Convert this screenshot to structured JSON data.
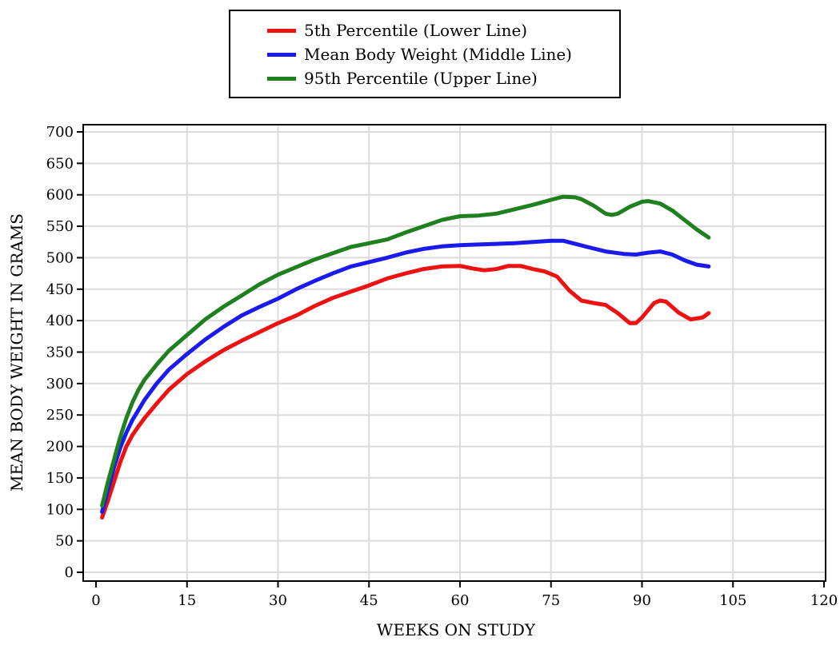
{
  "chart_data": {
    "type": "line",
    "title": "",
    "xlabel": "WEEKS ON STUDY",
    "ylabel": "MEAN BODY WEIGHT IN GRAMS",
    "xlim": [
      0,
      120
    ],
    "ylim": [
      0,
      700
    ],
    "x_ticks": [
      0,
      15,
      30,
      45,
      60,
      75,
      90,
      105,
      120
    ],
    "y_ticks": [
      0,
      50,
      100,
      150,
      200,
      250,
      300,
      350,
      400,
      450,
      500,
      550,
      600,
      650,
      700
    ],
    "grid": true,
    "legend_position": "top-center",
    "series": [
      {
        "name": "5th Percentile (Lower Line)",
        "color": "#ee1111",
        "x": [
          1,
          2,
          3,
          4,
          5,
          6,
          7,
          8,
          10,
          12,
          15,
          18,
          21,
          24,
          27,
          30,
          33,
          36,
          39,
          42,
          45,
          48,
          51,
          54,
          57,
          60,
          62,
          64,
          66,
          68,
          70,
          72,
          74,
          76,
          78,
          80,
          82,
          84,
          86,
          88,
          89,
          90,
          92,
          93,
          94,
          96,
          98,
          100,
          101
        ],
        "values": [
          87,
          115,
          145,
          175,
          200,
          218,
          232,
          245,
          268,
          290,
          315,
          335,
          353,
          368,
          382,
          396,
          408,
          423,
          436,
          446,
          456,
          467,
          475,
          482,
          486,
          487,
          483,
          480,
          482,
          487,
          487,
          482,
          478,
          470,
          448,
          432,
          428,
          425,
          412,
          396,
          396,
          405,
          428,
          432,
          430,
          413,
          402,
          405,
          412
        ]
      },
      {
        "name": "Mean Body Weight (Middle Line)",
        "color": "#1a1aee",
        "x": [
          1,
          2,
          3,
          4,
          5,
          6,
          7,
          8,
          10,
          12,
          15,
          18,
          21,
          24,
          27,
          30,
          33,
          36,
          39,
          42,
          45,
          48,
          51,
          54,
          57,
          60,
          63,
          66,
          69,
          72,
          75,
          77,
          79,
          81,
          84,
          87,
          89,
          91,
          93,
          95,
          97,
          99,
          101
        ],
        "values": [
          96,
          132,
          168,
          198,
          222,
          242,
          258,
          274,
          300,
          322,
          347,
          370,
          390,
          408,
          422,
          435,
          450,
          463,
          475,
          486,
          493,
          500,
          508,
          514,
          518,
          520,
          521,
          522,
          523,
          525,
          527,
          527,
          522,
          517,
          510,
          506,
          505,
          508,
          510,
          505,
          496,
          489,
          486
        ]
      },
      {
        "name": "95th Percentile (Upper Line)",
        "color": "#1e801e",
        "x": [
          1,
          2,
          3,
          4,
          5,
          6,
          7,
          8,
          10,
          12,
          15,
          18,
          21,
          24,
          27,
          30,
          33,
          36,
          39,
          42,
          45,
          48,
          51,
          54,
          57,
          60,
          63,
          66,
          69,
          72,
          75,
          77,
          79,
          80,
          82,
          84,
          85,
          86,
          88,
          90,
          91,
          93,
          95,
          97,
          99,
          101
        ],
        "values": [
          106,
          145,
          180,
          215,
          245,
          270,
          290,
          306,
          330,
          352,
          377,
          402,
          422,
          440,
          458,
          473,
          485,
          497,
          507,
          517,
          523,
          529,
          540,
          550,
          560,
          566,
          567,
          570,
          577,
          584,
          592,
          597,
          596,
          593,
          583,
          570,
          568,
          570,
          581,
          589,
          590,
          586,
          575,
          560,
          545,
          532
        ]
      }
    ]
  }
}
